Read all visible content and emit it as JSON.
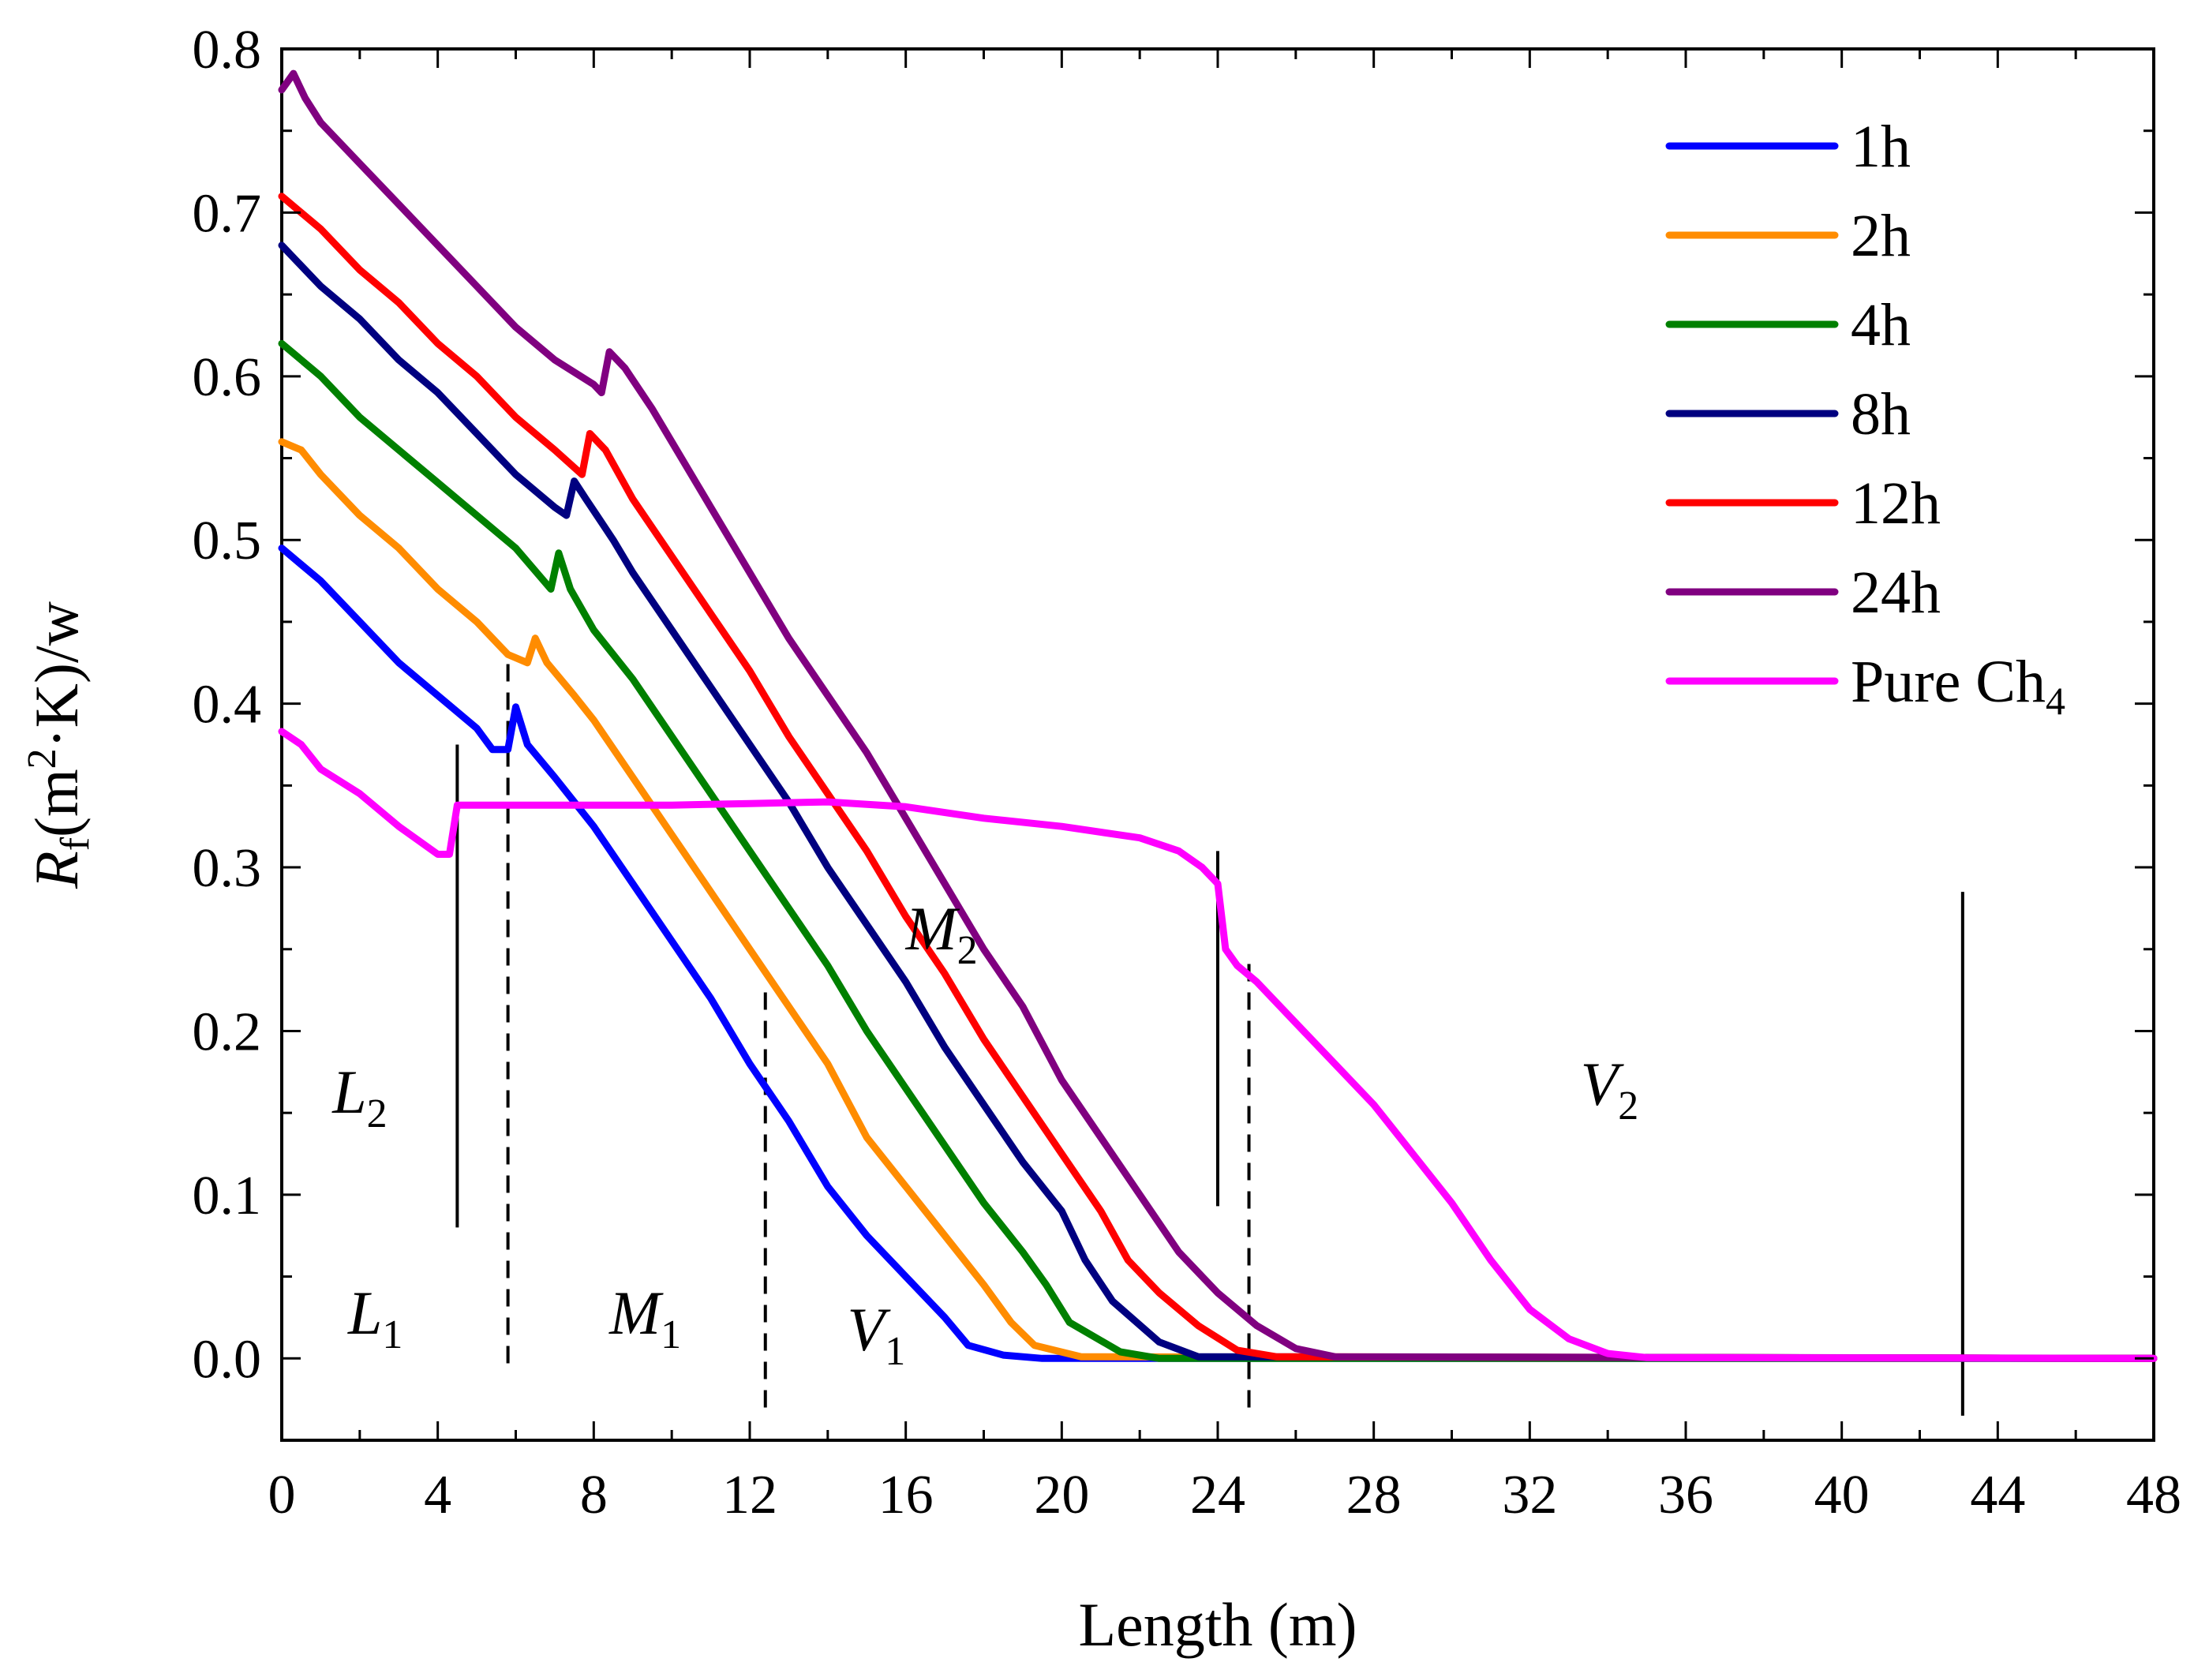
{
  "chart_data": {
    "type": "line",
    "xlabel": "Length (m)",
    "ylabel": {
      "main": "R",
      "sub": "f",
      "rest1": "(m",
      "sup": "2",
      "rest2": "·K)/w"
    },
    "xlim": [
      0,
      48
    ],
    "ylim": [
      -0.05,
      0.8
    ],
    "xticks": [
      0,
      4,
      8,
      12,
      16,
      20,
      24,
      28,
      32,
      36,
      40,
      44,
      48
    ],
    "yticks": [
      0.0,
      0.1,
      0.2,
      0.3,
      0.4,
      0.5,
      0.6,
      0.7,
      0.8
    ],
    "xtick_labels": [
      "0",
      "4",
      "8",
      "12",
      "16",
      "20",
      "24",
      "28",
      "32",
      "36",
      "40",
      "44",
      "48"
    ],
    "ytick_labels": [
      "0.0",
      "0.1",
      "0.2",
      "0.3",
      "0.4",
      "0.5",
      "0.6",
      "0.7",
      "0.8"
    ],
    "legend_position": "top-right",
    "series": [
      {
        "name": "1h",
        "label": "1h",
        "color": "#0000ff",
        "points": [
          [
            0,
            0.495
          ],
          [
            1,
            0.475
          ],
          [
            2,
            0.45
          ],
          [
            3,
            0.425
          ],
          [
            4,
            0.405
          ],
          [
            5,
            0.385
          ],
          [
            5.4,
            0.372
          ],
          [
            5.8,
            0.372
          ],
          [
            6.0,
            0.398
          ],
          [
            6.3,
            0.375
          ],
          [
            7,
            0.355
          ],
          [
            8,
            0.325
          ],
          [
            9,
            0.29
          ],
          [
            10,
            0.255
          ],
          [
            11,
            0.22
          ],
          [
            12,
            0.18
          ],
          [
            13,
            0.145
          ],
          [
            14,
            0.105
          ],
          [
            15,
            0.075
          ],
          [
            16,
            0.05
          ],
          [
            17,
            0.025
          ],
          [
            17.6,
            0.008
          ],
          [
            18.5,
            0.002
          ],
          [
            19.5,
            0
          ],
          [
            48,
            0
          ]
        ]
      },
      {
        "name": "2h",
        "label": "2h",
        "color": "#ff8c00",
        "points": [
          [
            0,
            0.56
          ],
          [
            0.5,
            0.555
          ],
          [
            1,
            0.54
          ],
          [
            2,
            0.515
          ],
          [
            3,
            0.495
          ],
          [
            4,
            0.47
          ],
          [
            5,
            0.45
          ],
          [
            5.8,
            0.43
          ],
          [
            6.3,
            0.425
          ],
          [
            6.5,
            0.44
          ],
          [
            6.8,
            0.425
          ],
          [
            7.5,
            0.405
          ],
          [
            8,
            0.39
          ],
          [
            9,
            0.355
          ],
          [
            10,
            0.32
          ],
          [
            11,
            0.285
          ],
          [
            12,
            0.25
          ],
          [
            13,
            0.215
          ],
          [
            14,
            0.18
          ],
          [
            15,
            0.135
          ],
          [
            16,
            0.105
          ],
          [
            17,
            0.075
          ],
          [
            18,
            0.045
          ],
          [
            18.7,
            0.022
          ],
          [
            19.3,
            0.008
          ],
          [
            20.5,
            0.001
          ],
          [
            48,
            0
          ]
        ]
      },
      {
        "name": "4h",
        "label": "4h",
        "color": "#008000",
        "points": [
          [
            0,
            0.62
          ],
          [
            1,
            0.6
          ],
          [
            2,
            0.575
          ],
          [
            3,
            0.555
          ],
          [
            4,
            0.535
          ],
          [
            5,
            0.515
          ],
          [
            6,
            0.495
          ],
          [
            6.9,
            0.47
          ],
          [
            7.1,
            0.492
          ],
          [
            7.4,
            0.47
          ],
          [
            8,
            0.445
          ],
          [
            9,
            0.415
          ],
          [
            10,
            0.38
          ],
          [
            11,
            0.345
          ],
          [
            12,
            0.31
          ],
          [
            13,
            0.275
          ],
          [
            14,
            0.24
          ],
          [
            15,
            0.2
          ],
          [
            16,
            0.165
          ],
          [
            17,
            0.13
          ],
          [
            18,
            0.095
          ],
          [
            19,
            0.065
          ],
          [
            19.6,
            0.045
          ],
          [
            20.2,
            0.022
          ],
          [
            21.5,
            0.004
          ],
          [
            22.5,
            0
          ],
          [
            48,
            0
          ]
        ]
      },
      {
        "name": "8h",
        "label": "8h",
        "color": "#000080",
        "points": [
          [
            0,
            0.68
          ],
          [
            1,
            0.655
          ],
          [
            2,
            0.635
          ],
          [
            3,
            0.61
          ],
          [
            4,
            0.59
          ],
          [
            5,
            0.565
          ],
          [
            6,
            0.54
          ],
          [
            7,
            0.52
          ],
          [
            7.3,
            0.515
          ],
          [
            7.5,
            0.536
          ],
          [
            7.8,
            0.525
          ],
          [
            8.5,
            0.5
          ],
          [
            9,
            0.48
          ],
          [
            10,
            0.445
          ],
          [
            11,
            0.41
          ],
          [
            12,
            0.375
          ],
          [
            13,
            0.34
          ],
          [
            14,
            0.3
          ],
          [
            15,
            0.265
          ],
          [
            16,
            0.23
          ],
          [
            17,
            0.19
          ],
          [
            18,
            0.155
          ],
          [
            19,
            0.12
          ],
          [
            20,
            0.09
          ],
          [
            20.6,
            0.06
          ],
          [
            21.3,
            0.035
          ],
          [
            22.5,
            0.01
          ],
          [
            23.5,
            0.001
          ],
          [
            48,
            0
          ]
        ]
      },
      {
        "name": "12h",
        "label": "12h",
        "color": "#ff0000",
        "points": [
          [
            0,
            0.71
          ],
          [
            1,
            0.69
          ],
          [
            2,
            0.665
          ],
          [
            3,
            0.645
          ],
          [
            4,
            0.62
          ],
          [
            5,
            0.6
          ],
          [
            6,
            0.575
          ],
          [
            7,
            0.555
          ],
          [
            7.7,
            0.54
          ],
          [
            7.9,
            0.565
          ],
          [
            8.3,
            0.555
          ],
          [
            9,
            0.525
          ],
          [
            10,
            0.49
          ],
          [
            11,
            0.455
          ],
          [
            12,
            0.42
          ],
          [
            13,
            0.38
          ],
          [
            14,
            0.345
          ],
          [
            15,
            0.31
          ],
          [
            16,
            0.27
          ],
          [
            17,
            0.235
          ],
          [
            18,
            0.195
          ],
          [
            19,
            0.16
          ],
          [
            20,
            0.125
          ],
          [
            21,
            0.09
          ],
          [
            21.7,
            0.06
          ],
          [
            22.5,
            0.04
          ],
          [
            23.5,
            0.02
          ],
          [
            24.5,
            0.005
          ],
          [
            25.5,
            0.001
          ],
          [
            48,
            0
          ]
        ]
      },
      {
        "name": "24h",
        "label": "24h",
        "color": "#800080",
        "points": [
          [
            0,
            0.775
          ],
          [
            0.3,
            0.785
          ],
          [
            0.6,
            0.77
          ],
          [
            1,
            0.755
          ],
          [
            2,
            0.73
          ],
          [
            3,
            0.705
          ],
          [
            4,
            0.68
          ],
          [
            5,
            0.655
          ],
          [
            6,
            0.63
          ],
          [
            7,
            0.61
          ],
          [
            8,
            0.595
          ],
          [
            8.2,
            0.59
          ],
          [
            8.4,
            0.615
          ],
          [
            8.8,
            0.605
          ],
          [
            9.5,
            0.58
          ],
          [
            10,
            0.56
          ],
          [
            11,
            0.52
          ],
          [
            12,
            0.48
          ],
          [
            13,
            0.44
          ],
          [
            14,
            0.405
          ],
          [
            15,
            0.37
          ],
          [
            16,
            0.33
          ],
          [
            17,
            0.29
          ],
          [
            18,
            0.25
          ],
          [
            19,
            0.215
          ],
          [
            20,
            0.17
          ],
          [
            21,
            0.135
          ],
          [
            22,
            0.1
          ],
          [
            23,
            0.065
          ],
          [
            24,
            0.04
          ],
          [
            25,
            0.02
          ],
          [
            26,
            0.006
          ],
          [
            27,
            0.001
          ],
          [
            48,
            0
          ]
        ]
      },
      {
        "name": "Pure CH4",
        "label": "Pure Ch",
        "label_sub": "4",
        "color": "#ff00ff",
        "points": [
          [
            0,
            0.383
          ],
          [
            0.5,
            0.375
          ],
          [
            1,
            0.36
          ],
          [
            2,
            0.345
          ],
          [
            3,
            0.325
          ],
          [
            4,
            0.308
          ],
          [
            4.3,
            0.308
          ],
          [
            4.5,
            0.338
          ],
          [
            6,
            0.338
          ],
          [
            8,
            0.338
          ],
          [
            10,
            0.338
          ],
          [
            12,
            0.339
          ],
          [
            14,
            0.34
          ],
          [
            16,
            0.337
          ],
          [
            18,
            0.33
          ],
          [
            20,
            0.325
          ],
          [
            22,
            0.318
          ],
          [
            23,
            0.31
          ],
          [
            23.6,
            0.3
          ],
          [
            24.0,
            0.29
          ],
          [
            24.2,
            0.25
          ],
          [
            24.5,
            0.24
          ],
          [
            25,
            0.23
          ],
          [
            26,
            0.205
          ],
          [
            27,
            0.18
          ],
          [
            28,
            0.155
          ],
          [
            29,
            0.125
          ],
          [
            30,
            0.095
          ],
          [
            31,
            0.06
          ],
          [
            32,
            0.03
          ],
          [
            33,
            0.012
          ],
          [
            34,
            0.003
          ],
          [
            35,
            0.0005
          ],
          [
            48,
            0
          ]
        ]
      }
    ],
    "region_lines": [
      {
        "x": 4.5,
        "y1": 0.08,
        "y2": 0.375,
        "style": "solid"
      },
      {
        "x": 5.8,
        "y1": -0.003,
        "y2": 0.43,
        "style": "dashed"
      },
      {
        "x": 12.4,
        "y1": -0.03,
        "y2": 0.225,
        "style": "dashed"
      },
      {
        "x": 24.0,
        "y1": 0.093,
        "y2": 0.31,
        "style": "solid"
      },
      {
        "x": 24.8,
        "y1": -0.03,
        "y2": 0.242,
        "style": "dashed"
      },
      {
        "x": 43.1,
        "y1": -0.035,
        "y2": 0.285,
        "style": "solid"
      }
    ],
    "annotations": [
      {
        "main": "L",
        "sub": "2",
        "x": 1.3,
        "y": 0.15
      },
      {
        "main": "L",
        "sub": "1",
        "x": 1.7,
        "y": 0.015
      },
      {
        "main": "M",
        "sub": "1",
        "x": 8.4,
        "y": 0.015
      },
      {
        "main": "V",
        "sub": "1",
        "x": 14.5,
        "y": 0.005
      },
      {
        "main": "M",
        "sub": "2",
        "x": 16.0,
        "y": 0.25
      },
      {
        "main": "V",
        "sub": "2",
        "x": 33.3,
        "y": 0.155
      }
    ]
  }
}
